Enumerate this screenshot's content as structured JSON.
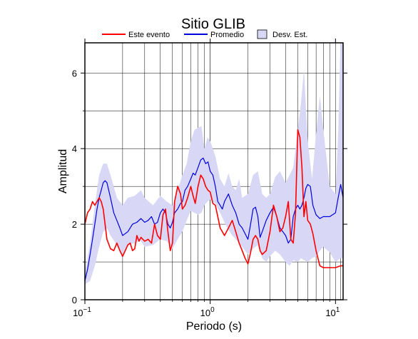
{
  "chart_data": {
    "type": "line",
    "title": "Sitio GLIB",
    "xlabel": "Periodo (s)",
    "ylabel": "Amplitud",
    "x_scale": "log",
    "xlim": [
      0.1,
      11.5
    ],
    "ylim": [
      0,
      6.8
    ],
    "grid": true,
    "legend_position": "top",
    "x_ticks": [
      {
        "value": 0.1,
        "base": "10",
        "exp": "−1"
      },
      {
        "value": 1,
        "base": "10",
        "exp": "0"
      },
      {
        "value": 10,
        "base": "10",
        "exp": "1"
      }
    ],
    "y_ticks": [
      0,
      2,
      4,
      6
    ],
    "colors": {
      "event": "#ff0000",
      "mean": "#0000dd",
      "band_fill": "#d8d8f6",
      "band_stroke": "#000000"
    },
    "legend": [
      {
        "key": "event",
        "label": "Este evento",
        "kind": "line"
      },
      {
        "key": "mean",
        "label": "Promedio",
        "kind": "line"
      },
      {
        "key": "band",
        "label": "Desv. Est.",
        "kind": "box"
      }
    ],
    "series": [
      {
        "key": "event",
        "name": "Este evento",
        "x": [
          0.1,
          0.105,
          0.11,
          0.115,
          0.12,
          0.125,
          0.13,
          0.135,
          0.14,
          0.145,
          0.15,
          0.16,
          0.17,
          0.18,
          0.19,
          0.2,
          0.21,
          0.22,
          0.23,
          0.24,
          0.25,
          0.26,
          0.27,
          0.28,
          0.3,
          0.32,
          0.34,
          0.36,
          0.38,
          0.4,
          0.42,
          0.44,
          0.46,
          0.48,
          0.5,
          0.52,
          0.55,
          0.58,
          0.6,
          0.63,
          0.66,
          0.7,
          0.73,
          0.76,
          0.8,
          0.84,
          0.88,
          0.92,
          0.96,
          1.0,
          1.05,
          1.1,
          1.15,
          1.2,
          1.25,
          1.3,
          1.4,
          1.5,
          1.6,
          1.7,
          1.8,
          1.9,
          2.0,
          2.1,
          2.2,
          2.3,
          2.4,
          2.5,
          2.6,
          2.8,
          3.0,
          3.2,
          3.4,
          3.6,
          3.8,
          4.0,
          4.2,
          4.4,
          4.6,
          4.8,
          5.0,
          5.2,
          5.4,
          5.6,
          5.8,
          6.0,
          6.3,
          6.6,
          7.0,
          7.5,
          8.0,
          9.0,
          10.0,
          11.0,
          11.5
        ],
        "values": [
          2.0,
          2.3,
          2.4,
          2.6,
          2.5,
          2.6,
          2.7,
          2.6,
          2.4,
          2.0,
          1.6,
          1.35,
          1.3,
          1.5,
          1.3,
          1.15,
          1.3,
          1.45,
          1.5,
          1.3,
          1.35,
          1.7,
          1.55,
          1.65,
          1.55,
          1.6,
          1.5,
          2.0,
          1.7,
          1.6,
          2.25,
          2.4,
          1.8,
          1.3,
          1.5,
          2.6,
          3.0,
          2.8,
          2.4,
          2.5,
          2.7,
          3.0,
          2.75,
          2.55,
          3.0,
          3.3,
          3.2,
          3.0,
          2.9,
          2.85,
          2.55,
          2.5,
          2.2,
          1.9,
          1.8,
          1.7,
          1.9,
          2.1,
          1.8,
          1.5,
          1.3,
          1.1,
          0.95,
          1.25,
          1.6,
          1.7,
          1.6,
          1.3,
          1.2,
          1.3,
          1.8,
          2.5,
          2.2,
          1.8,
          1.9,
          2.2,
          2.6,
          1.6,
          1.5,
          2.3,
          4.5,
          4.3,
          3.5,
          2.2,
          2.6,
          2.1,
          2.0,
          1.75,
          1.3,
          0.9,
          0.85,
          0.85,
          0.85,
          0.9,
          0.9
        ]
      },
      {
        "key": "mean",
        "name": "Promedio",
        "x": [
          0.1,
          0.105,
          0.11,
          0.115,
          0.12,
          0.125,
          0.13,
          0.135,
          0.14,
          0.145,
          0.15,
          0.16,
          0.17,
          0.18,
          0.19,
          0.2,
          0.22,
          0.24,
          0.26,
          0.28,
          0.3,
          0.32,
          0.34,
          0.36,
          0.38,
          0.4,
          0.42,
          0.44,
          0.46,
          0.48,
          0.5,
          0.52,
          0.55,
          0.58,
          0.6,
          0.63,
          0.66,
          0.7,
          0.73,
          0.76,
          0.8,
          0.84,
          0.88,
          0.92,
          0.96,
          1.0,
          1.05,
          1.1,
          1.15,
          1.2,
          1.25,
          1.3,
          1.4,
          1.5,
          1.6,
          1.7,
          1.8,
          1.9,
          2.0,
          2.1,
          2.2,
          2.3,
          2.4,
          2.5,
          2.6,
          2.8,
          3.0,
          3.2,
          3.4,
          3.6,
          3.8,
          4.0,
          4.2,
          4.4,
          4.6,
          4.8,
          5.0,
          5.2,
          5.4,
          5.6,
          5.8,
          6.0,
          6.3,
          6.6,
          7.0,
          7.5,
          8.0,
          9.0,
          10.0,
          10.5,
          11.0,
          11.5
        ],
        "values": [
          0.5,
          0.8,
          1.2,
          1.6,
          2.0,
          2.4,
          2.7,
          2.9,
          3.1,
          3.15,
          3.1,
          2.7,
          2.3,
          2.1,
          1.9,
          1.7,
          1.8,
          2.0,
          2.05,
          2.15,
          2.05,
          2.1,
          2.2,
          2.0,
          2.05,
          2.3,
          2.4,
          2.3,
          2.0,
          1.9,
          2.05,
          2.3,
          2.4,
          2.55,
          2.6,
          2.9,
          3.0,
          3.2,
          3.35,
          3.3,
          3.5,
          3.7,
          3.75,
          3.6,
          3.65,
          3.4,
          3.3,
          3.0,
          2.6,
          2.5,
          2.4,
          2.6,
          2.8,
          2.5,
          2.3,
          2.0,
          1.9,
          1.75,
          1.6,
          2.0,
          2.4,
          2.45,
          2.2,
          1.65,
          1.8,
          2.1,
          2.3,
          2.45,
          2.2,
          1.9,
          1.8,
          1.7,
          1.5,
          1.6,
          2.2,
          2.4,
          2.5,
          2.4,
          2.5,
          2.7,
          2.95,
          3.05,
          3.0,
          2.5,
          2.25,
          2.15,
          2.2,
          2.2,
          2.3,
          2.7,
          3.05,
          2.7
        ]
      },
      {
        "key": "band",
        "name": "Desv. Est.",
        "x": [
          0.1,
          0.11,
          0.12,
          0.13,
          0.14,
          0.15,
          0.16,
          0.18,
          0.2,
          0.22,
          0.25,
          0.28,
          0.3,
          0.35,
          0.4,
          0.45,
          0.5,
          0.55,
          0.6,
          0.65,
          0.7,
          0.75,
          0.8,
          0.85,
          0.9,
          0.95,
          1.0,
          1.1,
          1.2,
          1.3,
          1.4,
          1.5,
          1.6,
          1.7,
          1.8,
          2.0,
          2.2,
          2.4,
          2.6,
          2.8,
          3.0,
          3.3,
          3.6,
          4.0,
          4.3,
          4.6,
          5.0,
          5.3,
          5.6,
          6.0,
          6.5,
          7.0,
          7.5,
          8.0,
          9.0,
          10.0,
          10.5,
          11.0,
          11.5
        ],
        "upper": [
          0.7,
          1.5,
          2.5,
          3.3,
          3.6,
          3.6,
          3.3,
          2.7,
          2.5,
          2.7,
          2.75,
          2.9,
          2.7,
          2.5,
          2.75,
          2.6,
          2.5,
          2.9,
          3.3,
          3.6,
          4.2,
          4.5,
          4.55,
          4.6,
          4.0,
          4.3,
          4.2,
          3.8,
          3.2,
          3.0,
          3.35,
          3.0,
          2.9,
          3.2,
          2.7,
          2.8,
          3.3,
          3.4,
          2.8,
          2.7,
          2.8,
          3.25,
          3.4,
          3.1,
          3.3,
          3.5,
          4.5,
          5.2,
          6.1,
          4.2,
          3.2,
          4.4,
          5.4,
          4.5,
          3.0,
          2.8,
          4.4,
          7.0,
          6.8
        ],
        "lower": [
          0.4,
          0.5,
          0.9,
          1.4,
          1.8,
          1.9,
          1.7,
          1.45,
          1.15,
          1.45,
          1.5,
          1.55,
          1.4,
          1.45,
          1.6,
          1.55,
          1.35,
          1.6,
          1.8,
          2.1,
          2.35,
          2.3,
          2.25,
          2.3,
          2.5,
          2.6,
          2.65,
          2.55,
          2.3,
          2.05,
          1.85,
          1.7,
          1.6,
          1.5,
          1.4,
          1.2,
          1.35,
          1.45,
          1.1,
          1.0,
          1.15,
          1.3,
          1.2,
          1.0,
          0.9,
          1.05,
          1.0,
          1.1,
          1.05,
          1.0,
          1.1,
          1.15,
          1.3,
          1.4,
          1.25,
          1.0,
          1.05,
          1.1,
          1.1
        ]
      }
    ]
  }
}
